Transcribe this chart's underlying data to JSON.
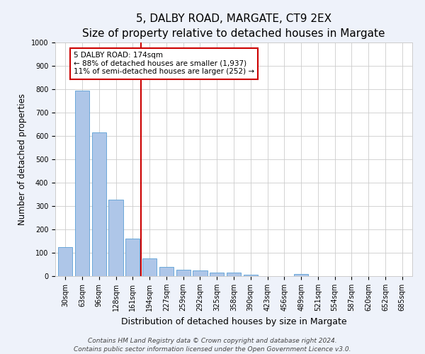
{
  "title": "5, DALBY ROAD, MARGATE, CT9 2EX",
  "subtitle": "Size of property relative to detached houses in Margate",
  "xlabel": "Distribution of detached houses by size in Margate",
  "ylabel": "Number of detached properties",
  "categories": [
    "30sqm",
    "63sqm",
    "96sqm",
    "128sqm",
    "161sqm",
    "194sqm",
    "227sqm",
    "259sqm",
    "292sqm",
    "325sqm",
    "358sqm",
    "390sqm",
    "423sqm",
    "456sqm",
    "489sqm",
    "521sqm",
    "554sqm",
    "587sqm",
    "620sqm",
    "652sqm",
    "685sqm"
  ],
  "values": [
    125,
    795,
    615,
    328,
    160,
    77,
    40,
    28,
    23,
    16,
    15,
    7,
    0,
    0,
    10,
    0,
    0,
    0,
    0,
    0,
    0
  ],
  "bar_color": "#aec6e8",
  "bar_edge_color": "#5a9fd4",
  "vline_x": 4.5,
  "vline_color": "#cc0000",
  "annotation_text": "5 DALBY ROAD: 174sqm\n← 88% of detached houses are smaller (1,937)\n11% of semi-detached houses are larger (252) →",
  "annotation_box_color": "#ffffff",
  "annotation_box_edge_color": "#cc0000",
  "ylim": [
    0,
    1000
  ],
  "yticks": [
    0,
    100,
    200,
    300,
    400,
    500,
    600,
    700,
    800,
    900,
    1000
  ],
  "footer_line1": "Contains HM Land Registry data © Crown copyright and database right 2024.",
  "footer_line2": "Contains public sector information licensed under the Open Government Licence v3.0.",
  "title_fontsize": 11,
  "subtitle_fontsize": 9.5,
  "xlabel_fontsize": 9,
  "ylabel_fontsize": 8.5,
  "tick_fontsize": 7,
  "footer_fontsize": 6.5,
  "annotation_fontsize": 7.5,
  "background_color": "#eef2fa",
  "plot_background_color": "#ffffff",
  "grid_color": "#cccccc"
}
